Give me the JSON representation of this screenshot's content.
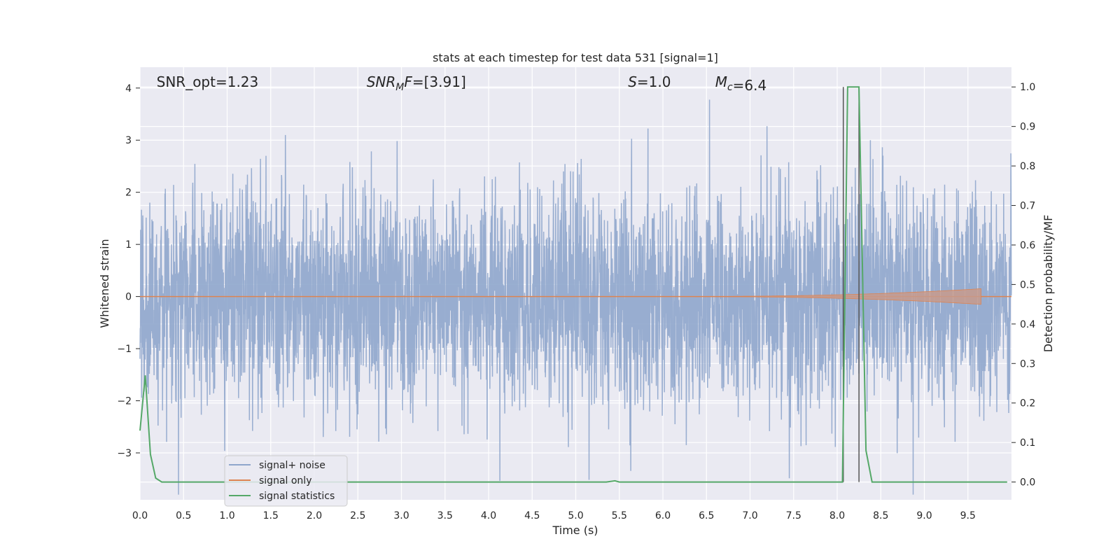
{
  "chart_data": {
    "type": "line",
    "title": "stats at each timestep for test data 531 [signal=1]",
    "xlabel": "Time (s)",
    "ylabel": "Whitened strain",
    "y2label": "Detection probability/MF",
    "xlim": [
      0.0,
      10.0
    ],
    "ylim": [
      -3.9,
      4.4
    ],
    "y2lim": [
      -0.045,
      1.05
    ],
    "x_ticks": [
      "0.0",
      "0.5",
      "1.0",
      "1.5",
      "2.0",
      "2.5",
      "3.0",
      "3.5",
      "4.0",
      "4.5",
      "5.0",
      "5.5",
      "6.0",
      "6.5",
      "7.0",
      "7.5",
      "8.0",
      "8.5",
      "9.0",
      "9.5"
    ],
    "y_ticks": [
      {
        "value": 4,
        "label": "4"
      },
      {
        "value": 3,
        "label": "3"
      },
      {
        "value": 2,
        "label": "2"
      },
      {
        "value": 1,
        "label": "1"
      },
      {
        "value": 0,
        "label": "0"
      },
      {
        "value": -1,
        "label": "−1"
      },
      {
        "value": -2,
        "label": "−2"
      },
      {
        "value": -3,
        "label": "−3"
      }
    ],
    "y2_ticks": [
      "0.0",
      "0.1",
      "0.2",
      "0.3",
      "0.4",
      "0.5",
      "0.6",
      "0.7",
      "0.8",
      "0.9",
      "1.0"
    ],
    "annotations": [
      {
        "prefix": "SNR_opt",
        "sub": "",
        "suffix": "=1.23",
        "italic": false,
        "x": 0.19
      },
      {
        "prefix": "SNR",
        "sub": "M",
        "suffix2": "F",
        "suffix": "=[3.91]",
        "italic": true,
        "x": 2.6
      },
      {
        "prefix": "S",
        "sub": "",
        "suffix": "=1.0",
        "italic": true,
        "x": 5.6
      },
      {
        "prefix": "M",
        "sub": "c",
        "suffix": "=6.4",
        "italic": true,
        "x": 6.6
      }
    ],
    "vlines": [
      8.07,
      8.25
    ],
    "series": [
      {
        "name": "signal+ noise",
        "color": "#8fa6cc",
        "noise_sigma": 1.0,
        "n_samples": 4096
      },
      {
        "name": "signal only",
        "color": "#dd8452",
        "chirp_end": 9.65,
        "max_amplitude": 0.15
      },
      {
        "name": "signal statistics",
        "color": "#55a868",
        "x": [
          0.0,
          0.06,
          0.12,
          0.18,
          0.25,
          5.35,
          5.45,
          5.5,
          8.06,
          8.12,
          8.25,
          8.33,
          8.4,
          9.95
        ],
        "y": [
          0.13,
          0.27,
          0.07,
          0.01,
          0.0,
          0.0,
          0.003,
          0.0,
          0.0,
          1.0,
          1.0,
          0.08,
          0.0,
          0.0
        ]
      }
    ],
    "legend_position": "lower-left",
    "grid": true,
    "background": "#eaeaf2"
  }
}
